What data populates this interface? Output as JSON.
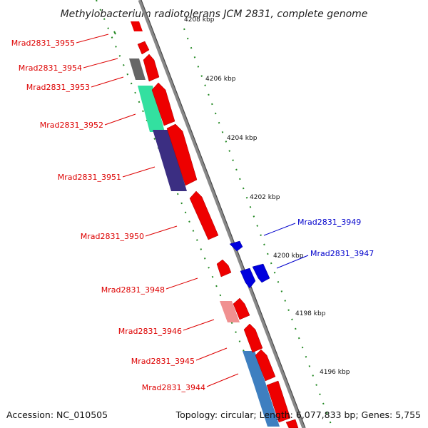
{
  "title": "Methylobacterium radiotolerans JCM 2831, complete genome",
  "footer": {
    "accession": "Accession: NC_010505",
    "stats": "Topology: circular; Length: 6,077,833 bp; Genes: 5,755"
  },
  "scale_labels": [
    "4206 kbp",
    "4204 kbp",
    "4202 kbp",
    "4200 kbp",
    "4198 kbp",
    "4196 kbp"
  ],
  "partial_scale_label": "4208 kbp",
  "colors": {
    "forward_gene": "#ee0000",
    "reverse_gene": "#0000dd",
    "backbone": "#888888",
    "tick": "#228822",
    "label_forward": "#dd0000",
    "label_reverse": "#0000cc"
  },
  "gene_labels": [
    {
      "text": "Mrad2831_3955",
      "strand": "forward"
    },
    {
      "text": "Mrad2831_3954",
      "strand": "forward"
    },
    {
      "text": "Mrad2831_3953",
      "strand": "forward"
    },
    {
      "text": "Mrad2831_3952",
      "strand": "forward"
    },
    {
      "text": "Mrad2831_3951",
      "strand": "forward"
    },
    {
      "text": "Mrad2831_3950",
      "strand": "forward"
    },
    {
      "text": "Mrad2831_3948",
      "strand": "forward"
    },
    {
      "text": "Mrad2831_3946",
      "strand": "forward"
    },
    {
      "text": "Mrad2831_3945",
      "strand": "forward"
    },
    {
      "text": "Mrad2831_3944",
      "strand": "forward"
    },
    {
      "text": "Mrad2831_3949",
      "strand": "reverse"
    },
    {
      "text": "Mrad2831_3947",
      "strand": "reverse"
    }
  ]
}
